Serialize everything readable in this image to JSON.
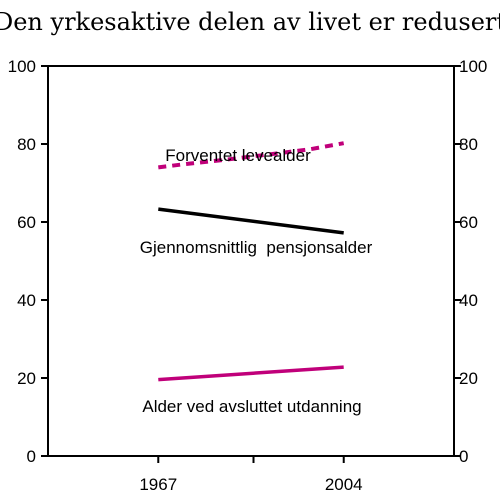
{
  "chart_data": {
    "type": "line",
    "title": "Den yrkesaktive delen av livet er redusert",
    "xlabel": "",
    "ylabel": "",
    "ylim": [
      0,
      100
    ],
    "xlim": [
      1945,
      2026
    ],
    "y_ticks": [
      0,
      20,
      40,
      60,
      80,
      100
    ],
    "y_tick_labels": [
      "0",
      "20",
      "40",
      "60",
      "80",
      "100"
    ],
    "x_ticks": [
      1967,
      2004
    ],
    "x_tick_labels": [
      "1967",
      "2004"
    ],
    "x_minor_ticks": [
      1986
    ],
    "grid": false,
    "right_axis": true,
    "series": [
      {
        "name": "Forventet levealder",
        "x": [
          1967,
          1972,
          1977,
          1982,
          1987,
          1992,
          1997,
          2004
        ],
        "values": [
          74,
          74.8,
          75.5,
          76.2,
          77,
          77.8,
          78.6,
          80.2
        ],
        "color": "#c0007a",
        "style": "dashed"
      },
      {
        "name": "Gjennomsnittlig  pensjonsalder",
        "x": [
          1967,
          2004
        ],
        "values": [
          63.3,
          57.2
        ],
        "color": "#000000",
        "style": "solid"
      },
      {
        "name": "Alder ved avsluttet utdanning",
        "x": [
          1967,
          2004
        ],
        "values": [
          19.6,
          22.8
        ],
        "color": "#c0007a",
        "style": "solid"
      }
    ]
  }
}
